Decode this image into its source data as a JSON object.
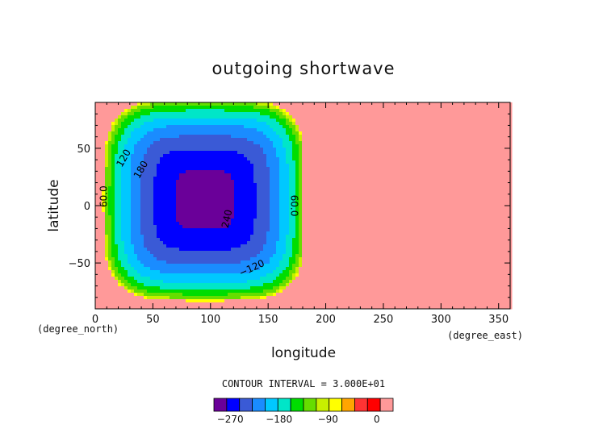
{
  "chart_data": {
    "type": "heatmap",
    "title": "outgoing shortwave",
    "xlabel": "longitude",
    "ylabel": "latitude",
    "x_units": "(degree_east)",
    "y_units": "(degree_north)",
    "xlim": [
      0,
      360
    ],
    "ylim": [
      -90,
      90
    ],
    "x_ticks": [
      "0",
      "50",
      "100",
      "150",
      "200",
      "250",
      "300",
      "350"
    ],
    "y_ticks": [
      "50",
      "0",
      "−50"
    ],
    "contour_interval_text": "CONTOUR INTERVAL = 3.000E+01",
    "contour_labels": [
      "60.0",
      "120",
      "180",
      "240",
      "60.0",
      "−120"
    ],
    "colorbar": {
      "min": -300,
      "max": 0,
      "step": 30,
      "tick_labels": [
        "−270",
        "−180",
        "−90",
        "0"
      ],
      "colors": [
        "#6a0099",
        "#0000ff",
        "#3a5ad6",
        "#1a8cff",
        "#00c8ff",
        "#00e6c8",
        "#00dd00",
        "#66dd00",
        "#c8f000",
        "#ffff00",
        "#ffa500",
        "#ff3333",
        "#ff0000",
        "#ff9999"
      ]
    },
    "field": {
      "description_values": "minimum near lon 95, lat 5 (about -280); zero outside lon 0-180",
      "center_lon": 95,
      "center_lat": 5,
      "min_value": -285
    }
  }
}
